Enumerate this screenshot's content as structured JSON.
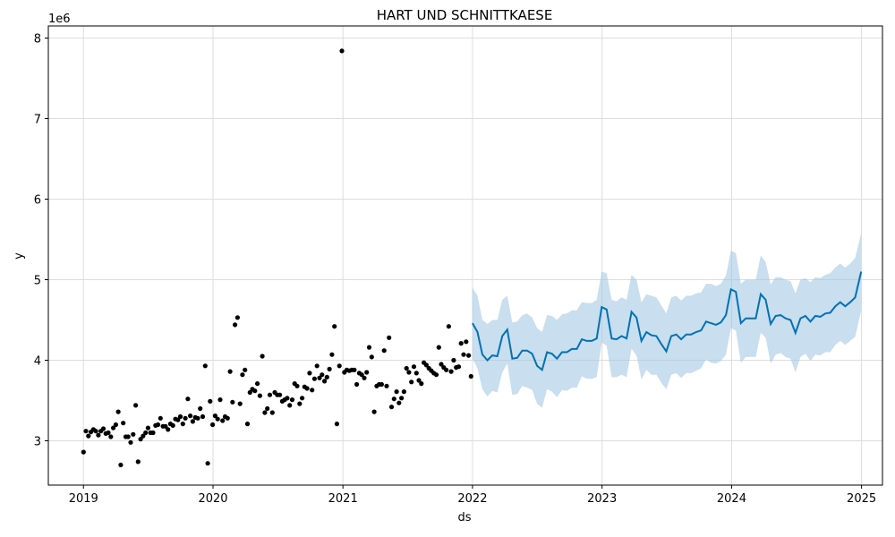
{
  "chart_data": {
    "type": "scatter",
    "title": "HART UND SCHNITTKAESE",
    "xlabel": "ds",
    "ylabel": "y",
    "y_multiplier_label": "1e6",
    "xlim": [
      "2018-09-24",
      "2025-03-01"
    ],
    "ylim": [
      2.45,
      8.15
    ],
    "x_ticks": [
      "2019",
      "2020",
      "2021",
      "2022",
      "2023",
      "2024",
      "2025"
    ],
    "y_ticks": [
      3,
      4,
      5,
      6,
      7,
      8
    ],
    "grid": true,
    "colors": {
      "points": "#000000",
      "forecast_line": "#0072B2",
      "interval_fill": "#9dc3e0"
    },
    "series": [
      {
        "kind": "scatter",
        "points": [
          [
            "2019-01-01",
            2.86
          ],
          [
            "2019-01-08",
            3.12
          ],
          [
            "2019-01-15",
            3.06
          ],
          [
            "2019-01-22",
            3.11
          ],
          [
            "2019-01-29",
            3.14
          ],
          [
            "2019-02-05",
            3.12
          ],
          [
            "2019-02-12",
            3.07
          ],
          [
            "2019-02-19",
            3.12
          ],
          [
            "2019-02-26",
            3.15
          ],
          [
            "2019-03-05",
            3.09
          ],
          [
            "2019-03-12",
            3.1
          ],
          [
            "2019-03-19",
            3.05
          ],
          [
            "2019-03-26",
            3.16
          ],
          [
            "2019-04-02",
            3.2
          ],
          [
            "2019-04-09",
            3.36
          ],
          [
            "2019-04-16",
            2.7
          ],
          [
            "2019-04-23",
            3.22
          ],
          [
            "2019-04-30",
            3.05
          ],
          [
            "2019-05-07",
            3.05
          ],
          [
            "2019-05-14",
            2.98
          ],
          [
            "2019-05-21",
            3.08
          ],
          [
            "2019-05-28",
            3.44
          ],
          [
            "2019-06-04",
            2.74
          ],
          [
            "2019-06-11",
            3.02
          ],
          [
            "2019-06-18",
            3.06
          ],
          [
            "2019-06-25",
            3.1
          ],
          [
            "2019-07-02",
            3.16
          ],
          [
            "2019-07-09",
            3.1
          ],
          [
            "2019-07-16",
            3.1
          ],
          [
            "2019-07-23",
            3.19
          ],
          [
            "2019-07-30",
            3.2
          ],
          [
            "2019-08-06",
            3.28
          ],
          [
            "2019-08-13",
            3.18
          ],
          [
            "2019-08-20",
            3.18
          ],
          [
            "2019-08-27",
            3.14
          ],
          [
            "2019-09-03",
            3.21
          ],
          [
            "2019-09-10",
            3.19
          ],
          [
            "2019-09-17",
            3.27
          ],
          [
            "2019-09-24",
            3.26
          ],
          [
            "2019-10-01",
            3.3
          ],
          [
            "2019-10-08",
            3.21
          ],
          [
            "2019-10-15",
            3.28
          ],
          [
            "2019-10-22",
            3.52
          ],
          [
            "2019-10-29",
            3.31
          ],
          [
            "2019-11-05",
            3.24
          ],
          [
            "2019-11-12",
            3.29
          ],
          [
            "2019-11-19",
            3.28
          ],
          [
            "2019-11-26",
            3.4
          ],
          [
            "2019-12-03",
            3.3
          ],
          [
            "2019-12-10",
            3.93
          ],
          [
            "2019-12-17",
            2.72
          ],
          [
            "2019-12-24",
            3.49
          ],
          [
            "2019-12-31",
            3.2
          ],
          [
            "2020-01-07",
            3.31
          ],
          [
            "2020-01-14",
            3.27
          ],
          [
            "2020-01-21",
            3.51
          ],
          [
            "2020-01-28",
            3.25
          ],
          [
            "2020-02-04",
            3.3
          ],
          [
            "2020-02-11",
            3.28
          ],
          [
            "2020-02-18",
            3.86
          ],
          [
            "2020-02-25",
            3.48
          ],
          [
            "2020-03-03",
            4.44
          ],
          [
            "2020-03-10",
            4.53
          ],
          [
            "2020-03-17",
            3.46
          ],
          [
            "2020-03-24",
            3.82
          ],
          [
            "2020-03-31",
            3.88
          ],
          [
            "2020-04-07",
            3.21
          ],
          [
            "2020-04-14",
            3.6
          ],
          [
            "2020-04-21",
            3.64
          ],
          [
            "2020-04-28",
            3.62
          ],
          [
            "2020-05-05",
            3.71
          ],
          [
            "2020-05-12",
            3.56
          ],
          [
            "2020-05-19",
            4.05
          ],
          [
            "2020-05-26",
            3.35
          ],
          [
            "2020-06-02",
            3.4
          ],
          [
            "2020-06-09",
            3.57
          ],
          [
            "2020-06-16",
            3.35
          ],
          [
            "2020-06-23",
            3.6
          ],
          [
            "2020-06-30",
            3.57
          ],
          [
            "2020-07-07",
            3.57
          ],
          [
            "2020-07-14",
            3.49
          ],
          [
            "2020-07-21",
            3.51
          ],
          [
            "2020-07-28",
            3.53
          ],
          [
            "2020-08-04",
            3.44
          ],
          [
            "2020-08-11",
            3.51
          ],
          [
            "2020-08-18",
            3.71
          ],
          [
            "2020-08-25",
            3.68
          ],
          [
            "2020-09-01",
            3.46
          ],
          [
            "2020-09-08",
            3.53
          ],
          [
            "2020-09-15",
            3.67
          ],
          [
            "2020-09-22",
            3.65
          ],
          [
            "2020-09-29",
            3.84
          ],
          [
            "2020-10-06",
            3.63
          ],
          [
            "2020-10-13",
            3.77
          ],
          [
            "2020-10-20",
            3.93
          ],
          [
            "2020-10-27",
            3.78
          ],
          [
            "2020-11-03",
            3.82
          ],
          [
            "2020-11-10",
            3.74
          ],
          [
            "2020-11-17",
            3.79
          ],
          [
            "2020-11-24",
            3.89
          ],
          [
            "2020-12-01",
            4.07
          ],
          [
            "2020-12-08",
            4.42
          ],
          [
            "2020-12-15",
            3.21
          ],
          [
            "2020-12-22",
            3.93
          ],
          [
            "2020-12-29",
            7.84
          ],
          [
            "2021-01-05",
            3.85
          ],
          [
            "2021-01-12",
            3.88
          ],
          [
            "2021-01-19",
            3.87
          ],
          [
            "2021-01-26",
            3.88
          ],
          [
            "2021-02-02",
            3.88
          ],
          [
            "2021-02-09",
            3.7
          ],
          [
            "2021-02-16",
            3.84
          ],
          [
            "2021-02-23",
            3.82
          ],
          [
            "2021-03-02",
            3.78
          ],
          [
            "2021-03-09",
            3.85
          ],
          [
            "2021-03-16",
            4.16
          ],
          [
            "2021-03-23",
            4.04
          ],
          [
            "2021-03-30",
            3.36
          ],
          [
            "2021-04-06",
            3.68
          ],
          [
            "2021-04-13",
            3.7
          ],
          [
            "2021-04-20",
            3.7
          ],
          [
            "2021-04-27",
            4.12
          ],
          [
            "2021-05-04",
            3.68
          ],
          [
            "2021-05-11",
            4.28
          ],
          [
            "2021-05-18",
            3.42
          ],
          [
            "2021-05-25",
            3.52
          ],
          [
            "2021-06-01",
            3.61
          ],
          [
            "2021-06-08",
            3.47
          ],
          [
            "2021-06-15",
            3.53
          ],
          [
            "2021-06-22",
            3.61
          ],
          [
            "2021-06-29",
            3.9
          ],
          [
            "2021-07-06",
            3.85
          ],
          [
            "2021-07-13",
            3.73
          ],
          [
            "2021-07-20",
            3.92
          ],
          [
            "2021-07-27",
            3.84
          ],
          [
            "2021-08-03",
            3.75
          ],
          [
            "2021-08-10",
            3.71
          ],
          [
            "2021-08-17",
            3.97
          ],
          [
            "2021-08-24",
            3.94
          ],
          [
            "2021-08-31",
            3.9
          ],
          [
            "2021-09-07",
            3.87
          ],
          [
            "2021-09-14",
            3.84
          ],
          [
            "2021-09-21",
            3.82
          ],
          [
            "2021-09-28",
            4.16
          ],
          [
            "2021-10-05",
            3.95
          ],
          [
            "2021-10-12",
            3.91
          ],
          [
            "2021-10-19",
            3.88
          ],
          [
            "2021-10-26",
            4.42
          ],
          [
            "2021-11-02",
            3.86
          ],
          [
            "2021-11-09",
            4.0
          ],
          [
            "2021-11-16",
            3.91
          ],
          [
            "2021-11-23",
            3.92
          ],
          [
            "2021-11-30",
            4.21
          ],
          [
            "2021-12-07",
            4.07
          ],
          [
            "2021-12-14",
            4.23
          ],
          [
            "2021-12-21",
            4.06
          ],
          [
            "2021-12-28",
            3.8
          ]
        ]
      },
      {
        "kind": "forecast",
        "points": [
          [
            "2022-01-01",
            4.46,
            4.9
          ],
          [
            "2022-01-15",
            4.35,
            4.8
          ],
          [
            "2022-01-29",
            4.07,
            4.5
          ],
          [
            "2022-02-12",
            4.0,
            4.45
          ],
          [
            "2022-02-26",
            4.06,
            4.5
          ],
          [
            "2022-03-12",
            4.05,
            4.5
          ],
          [
            "2022-03-26",
            4.3,
            4.75
          ],
          [
            "2022-04-09",
            4.38,
            4.8
          ],
          [
            "2022-04-23",
            4.02,
            4.47
          ],
          [
            "2022-05-07",
            4.03,
            4.48
          ],
          [
            "2022-05-21",
            4.12,
            4.56
          ],
          [
            "2022-06-04",
            4.12,
            4.58
          ],
          [
            "2022-06-18",
            4.08,
            4.53
          ],
          [
            "2022-07-02",
            3.93,
            4.4
          ],
          [
            "2022-07-16",
            3.88,
            4.35
          ],
          [
            "2022-07-30",
            4.1,
            4.56
          ],
          [
            "2022-08-13",
            4.08,
            4.55
          ],
          [
            "2022-08-27",
            4.02,
            4.5
          ],
          [
            "2022-09-10",
            4.1,
            4.57
          ],
          [
            "2022-09-24",
            4.1,
            4.58
          ],
          [
            "2022-10-08",
            4.14,
            4.62
          ],
          [
            "2022-10-22",
            4.14,
            4.62
          ],
          [
            "2022-11-05",
            4.26,
            4.72
          ],
          [
            "2022-11-19",
            4.24,
            4.71
          ],
          [
            "2022-12-03",
            4.24,
            4.71
          ],
          [
            "2022-12-17",
            4.27,
            4.75
          ],
          [
            "2022-12-31",
            4.66,
            5.1
          ],
          [
            "2023-01-14",
            4.63,
            5.08
          ],
          [
            "2023-01-28",
            4.27,
            4.75
          ],
          [
            "2023-02-11",
            4.26,
            4.73
          ],
          [
            "2023-02-25",
            4.3,
            4.78
          ],
          [
            "2023-03-11",
            4.27,
            4.75
          ],
          [
            "2023-03-25",
            4.6,
            5.06
          ],
          [
            "2023-04-08",
            4.53,
            5.0
          ],
          [
            "2023-04-22",
            4.24,
            4.72
          ],
          [
            "2023-05-06",
            4.35,
            4.82
          ],
          [
            "2023-05-20",
            4.31,
            4.8
          ],
          [
            "2023-06-03",
            4.3,
            4.78
          ],
          [
            "2023-06-17",
            4.2,
            4.68
          ],
          [
            "2023-07-01",
            4.11,
            4.58
          ],
          [
            "2023-07-15",
            4.3,
            4.78
          ],
          [
            "2023-07-29",
            4.32,
            4.8
          ],
          [
            "2023-08-12",
            4.26,
            4.74
          ],
          [
            "2023-08-26",
            4.32,
            4.8
          ],
          [
            "2023-09-09",
            4.32,
            4.8
          ],
          [
            "2023-09-23",
            4.35,
            4.83
          ],
          [
            "2023-10-07",
            4.37,
            4.84
          ],
          [
            "2023-10-21",
            4.48,
            4.95
          ],
          [
            "2023-11-04",
            4.46,
            4.95
          ],
          [
            "2023-11-18",
            4.44,
            4.92
          ],
          [
            "2023-12-02",
            4.47,
            4.95
          ],
          [
            "2023-12-16",
            4.56,
            5.05
          ],
          [
            "2023-12-30",
            4.88,
            5.36
          ],
          [
            "2024-01-13",
            4.85,
            5.33
          ],
          [
            "2024-01-27",
            4.46,
            4.95
          ],
          [
            "2024-02-10",
            4.52,
            5.0
          ],
          [
            "2024-02-24",
            4.52,
            5.0
          ],
          [
            "2024-03-09",
            4.52,
            5.0
          ],
          [
            "2024-03-23",
            4.82,
            5.3
          ],
          [
            "2024-04-06",
            4.75,
            5.22
          ],
          [
            "2024-04-20",
            4.45,
            4.94
          ],
          [
            "2024-05-04",
            4.55,
            5.03
          ],
          [
            "2024-05-18",
            4.56,
            5.03
          ],
          [
            "2024-06-01",
            4.52,
            5.0
          ],
          [
            "2024-06-15",
            4.5,
            4.98
          ],
          [
            "2024-06-29",
            4.34,
            4.83
          ],
          [
            "2024-07-13",
            4.52,
            5.0
          ],
          [
            "2024-07-27",
            4.55,
            5.02
          ],
          [
            "2024-08-10",
            4.48,
            4.97
          ],
          [
            "2024-08-24",
            4.55,
            5.03
          ],
          [
            "2024-09-07",
            4.54,
            5.02
          ],
          [
            "2024-09-21",
            4.58,
            5.06
          ],
          [
            "2024-10-05",
            4.59,
            5.08
          ],
          [
            "2024-10-19",
            4.67,
            5.15
          ],
          [
            "2024-11-02",
            4.72,
            5.2
          ],
          [
            "2024-11-16",
            4.67,
            5.15
          ],
          [
            "2024-11-30",
            4.72,
            5.2
          ],
          [
            "2024-12-14",
            4.78,
            5.27
          ],
          [
            "2024-12-31",
            5.1,
            5.58
          ]
        ]
      }
    ]
  }
}
